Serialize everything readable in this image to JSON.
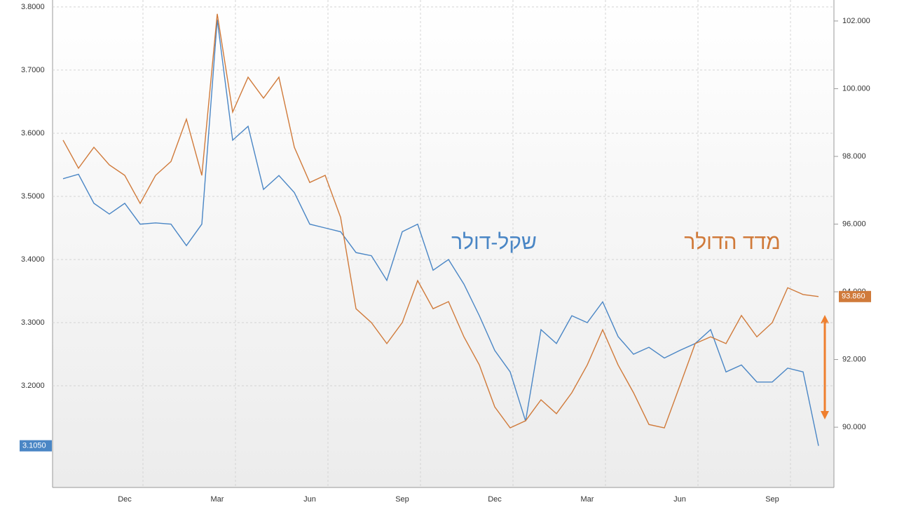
{
  "chart_data": {
    "type": "line",
    "categories": [
      null,
      null,
      null,
      null,
      "Dec",
      null,
      null,
      null,
      null,
      null,
      "Mar",
      null,
      null,
      null,
      null,
      null,
      "Jun",
      null,
      null,
      null,
      null,
      null,
      "Sep",
      null,
      null,
      null,
      null,
      null,
      "Dec",
      null,
      null,
      null,
      null,
      null,
      "Mar",
      null,
      null,
      null,
      null,
      null,
      "Jun",
      null,
      null,
      null,
      null,
      null,
      "Sep",
      null,
      null,
      null
    ],
    "series": [
      {
        "name": "שקל-דולר",
        "color": "#4a86c5",
        "end_label": "3.1050",
        "values": [
          3.528,
          3.535,
          3.489,
          3.472,
          3.489,
          3.456,
          3.458,
          3.456,
          3.422,
          3.456,
          3.78,
          3.589,
          3.611,
          3.511,
          3.533,
          3.506,
          3.456,
          3.45,
          3.444,
          3.411,
          3.406,
          3.367,
          3.444,
          3.456,
          3.383,
          3.4,
          3.361,
          3.311,
          3.256,
          3.222,
          3.144,
          3.289,
          3.267,
          3.311,
          3.3,
          3.333,
          3.278,
          3.25,
          3.261,
          3.244,
          3.256,
          3.267,
          3.289,
          3.222,
          3.233,
          3.206,
          3.206,
          3.228,
          3.222,
          3.105
        ]
      },
      {
        "name": "מדד הדולר",
        "color": "#d07a3a",
        "axis": "y2",
        "end_label": "93.860",
        "values": [
          98.48,
          97.65,
          98.27,
          97.75,
          97.44,
          96.61,
          97.44,
          97.85,
          99.1,
          97.44,
          102.21,
          99.31,
          100.34,
          99.72,
          100.34,
          98.27,
          97.23,
          97.44,
          96.2,
          93.5,
          93.09,
          92.47,
          93.09,
          94.33,
          93.5,
          93.71,
          92.67,
          91.84,
          90.6,
          89.98,
          90.19,
          90.81,
          90.4,
          91.02,
          91.84,
          92.88,
          91.84,
          91.02,
          90.08,
          89.98,
          91.22,
          92.47,
          92.67,
          92.47,
          93.3,
          92.67,
          93.09,
          94.12,
          93.92,
          93.86
        ]
      }
    ],
    "ylim": [
      3.039,
      3.811
    ],
    "yticks": [
      {
        "value": 3.8,
        "label": "3.8000"
      },
      {
        "value": 3.7,
        "label": "3.7000"
      },
      {
        "value": 3.6,
        "label": "3.6000"
      },
      {
        "value": 3.5,
        "label": "3.5000"
      },
      {
        "value": 3.4,
        "label": "3.4000"
      },
      {
        "value": 3.3,
        "label": "3.3000"
      },
      {
        "value": 3.2,
        "label": "3.2000"
      }
    ],
    "y2lim": [
      88.22,
      102.62
    ],
    "y2ticks": [
      {
        "value": 102,
        "label": "102.000"
      },
      {
        "value": 100,
        "label": "100.000"
      },
      {
        "value": 98,
        "label": "98.000"
      },
      {
        "value": 96,
        "label": "96.000"
      },
      {
        "value": 94,
        "label": "94.000"
      },
      {
        "value": 92,
        "label": "92.000"
      },
      {
        "value": 90,
        "label": "90.000"
      }
    ],
    "grid": true,
    "annotations": [
      "שקל-דולר",
      "מדד הדולר"
    ]
  }
}
